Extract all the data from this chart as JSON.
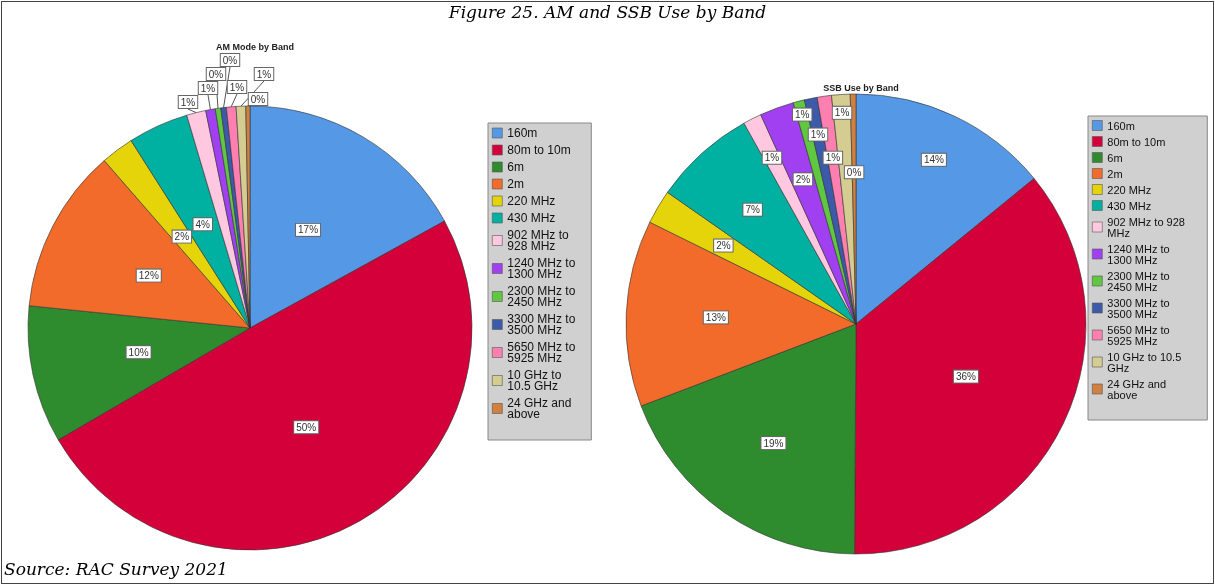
{
  "chart_data": [
    {
      "type": "pie",
      "title": "Figure 25. AM and SSB Use by Band",
      "subtitle": "AM Mode by Band",
      "annotations": [
        "Source: RAC Survey 2021"
      ],
      "legend": "right",
      "categories": [
        "160m",
        "80m to 10m",
        "6m",
        "2m",
        "220 MHz",
        "430 MHz",
        "902 MHz to 928 MHz",
        "1240 MHz to 1300 MHz",
        "2300 MHz to 2450 MHz",
        "3300 MHz to 3500 MHz",
        "5650 MHz to 5925 MHz",
        "10 GHz to 10.5 GHz",
        "24 GHz and above"
      ],
      "values": [
        17.0,
        49.6,
        10.0,
        12.0,
        2.4,
        4.4,
        1.4,
        0.7,
        0.4,
        0.4,
        0.7,
        0.7,
        0.3
      ],
      "value_labels": [
        "17%",
        "50%",
        "10%",
        "12%",
        "2%",
        "4%",
        "1%",
        "1%",
        "0%",
        "0%",
        "1%",
        "1%",
        "0%"
      ],
      "colors": [
        "#5599e6",
        "#d4003a",
        "#2e8b2e",
        "#f26b2a",
        "#e6d40a",
        "#00b0a0",
        "#ffc8e0",
        "#a040f0",
        "#60c840",
        "#3c5aaa",
        "#ff80b0",
        "#d4cc90",
        "#d08040"
      ]
    },
    {
      "type": "pie",
      "title": "SSB Use by Band",
      "legend": "right",
      "categories": [
        "160m",
        "80m to 10m",
        "6m",
        "2m",
        "220 MHz",
        "430 MHz",
        "902 MHz to 928 MHz",
        "1240 MHz to 1300 MHz",
        "2300 MHz to 2450 MHz",
        "3300 MHz to 3500 MHz",
        "5650 MHz to 5925 MHz",
        "10 GHz to 10.5 GHz",
        "24 GHz and above"
      ],
      "values": [
        14.1,
        36.0,
        19.1,
        13.1,
        2.4,
        7.2,
        1.3,
        2.4,
        0.8,
        0.9,
        1.0,
        1.3,
        0.4
      ],
      "value_labels": [
        "14%",
        "36%",
        "19%",
        "13%",
        "2%",
        "7%",
        "1%",
        "2%",
        "1%",
        "1%",
        "1%",
        "1%",
        "0%"
      ],
      "colors": [
        "#5599e6",
        "#d4003a",
        "#2e8b2e",
        "#f26b2a",
        "#e6d40a",
        "#00b0a0",
        "#ffc8e0",
        "#a040f0",
        "#60c840",
        "#3c5aaa",
        "#ff80b0",
        "#d4cc90",
        "#d08040"
      ]
    }
  ]
}
